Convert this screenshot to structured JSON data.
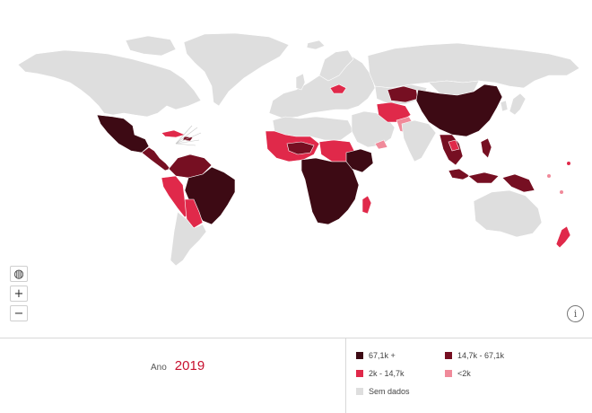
{
  "map": {
    "colors": {
      "very_high": "#3d0a14",
      "high": "#760f22",
      "medium": "#e0294a",
      "low": "#f08a9a",
      "no_data": "#dedede",
      "ocean": "#ffffff"
    }
  },
  "controls": {
    "globe_icon": "globe-icon",
    "zoom_in_label": "+",
    "zoom_out_label": "−",
    "info_label": "i"
  },
  "footer": {
    "year_label": "Ano",
    "year_value": "2019"
  },
  "legend": {
    "items": [
      {
        "label": "67,1k +",
        "color": "#3d0a14"
      },
      {
        "label": "14,7k - 67,1k",
        "color": "#760f22"
      },
      {
        "label": "2k - 14,7k",
        "color": "#e0294a"
      },
      {
        "label": "<2k",
        "color": "#f08a9a"
      },
      {
        "label": "Sem dados",
        "color": "#dedede"
      }
    ]
  }
}
